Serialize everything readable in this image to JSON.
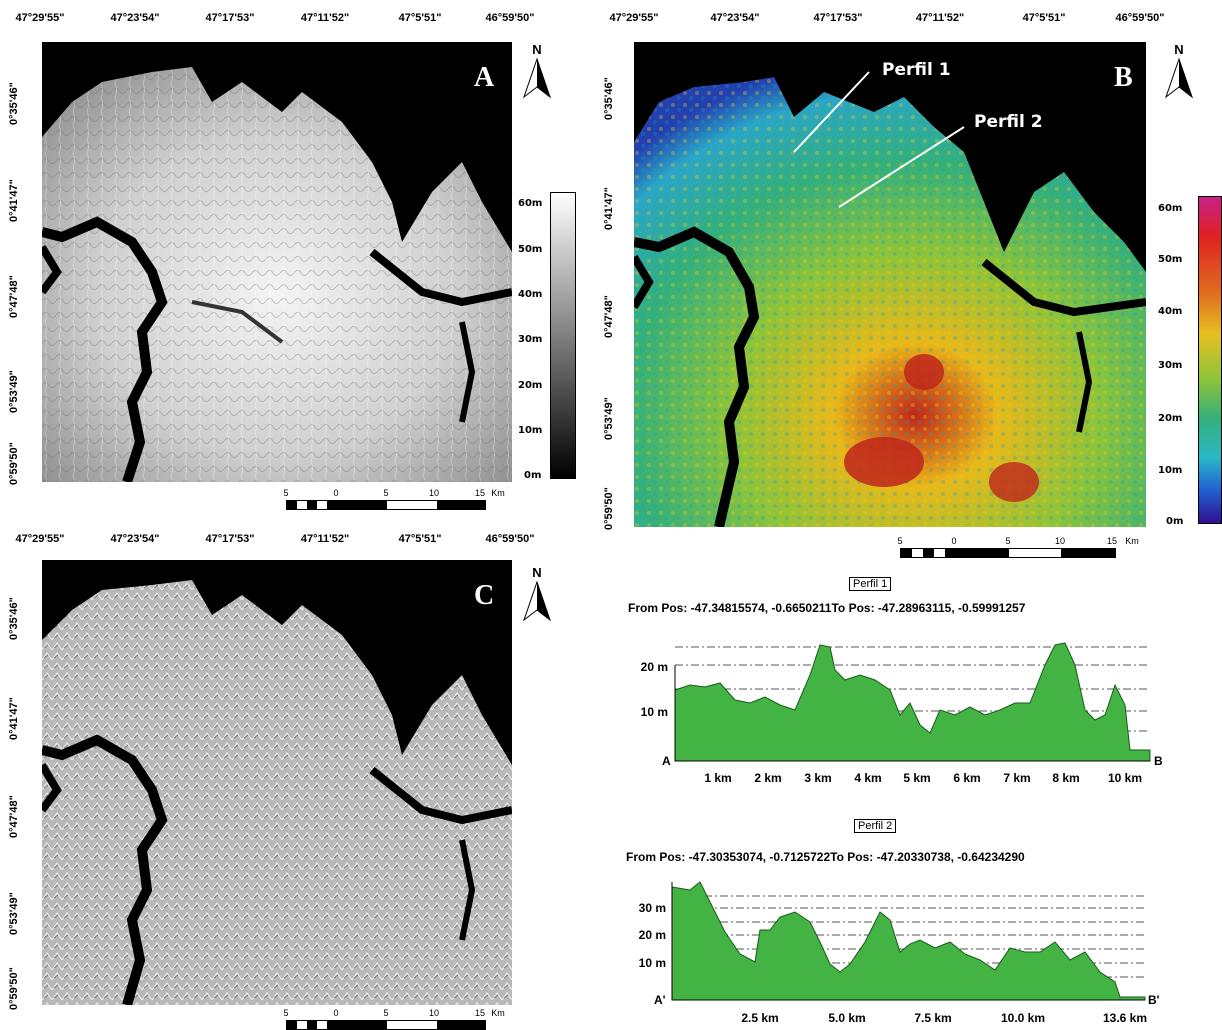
{
  "lon_labels": [
    "47°29'55\"",
    "47°23'54\"",
    "47°17'53\"",
    "47°11'52\"",
    "47°5'51\"",
    "46°59'50\""
  ],
  "lat_labels": [
    "0°35'46\"",
    "0°41'47\"",
    "0°47'48\"",
    "0°53'49\"",
    "0°59'50\""
  ],
  "panels": {
    "a": {
      "letter": "A"
    },
    "b": {
      "letter": "B",
      "perfil1": "Perfil 1",
      "perfil2": "Perfil 2"
    },
    "c": {
      "letter": "C"
    }
  },
  "north": "N",
  "legend": {
    "labels": [
      "60m",
      "50m",
      "40m",
      "30m",
      "20m",
      "10m",
      "0m"
    ]
  },
  "scalebar": {
    "labels": [
      "5",
      "0",
      "5",
      "10",
      "15"
    ],
    "unit": "Km"
  },
  "profiles": [
    {
      "title": "Perfil 1",
      "subtitle": "From Pos: -47.34815574, -0.6650211To Pos: -47.28963115, -0.59991257",
      "start": "A",
      "end": "B",
      "yticks": [
        "20 m",
        "10 m"
      ],
      "xticks": [
        "1 km",
        "2 km",
        "3 km",
        "4 km",
        "5 km",
        "6 km",
        "7 km",
        "8 km",
        "10 km"
      ]
    },
    {
      "title": "Perfil 2",
      "subtitle": "From Pos: -47.30353074, -0.7125722To Pos: -47.20330738, -0.64234290",
      "start": "A'",
      "end": "B'",
      "yticks": [
        "30 m",
        "20 m",
        "10 m"
      ],
      "xticks": [
        "2.5 km",
        "5.0 km",
        "7.5 km",
        "10.0 km",
        "13.6 km"
      ]
    }
  ]
}
